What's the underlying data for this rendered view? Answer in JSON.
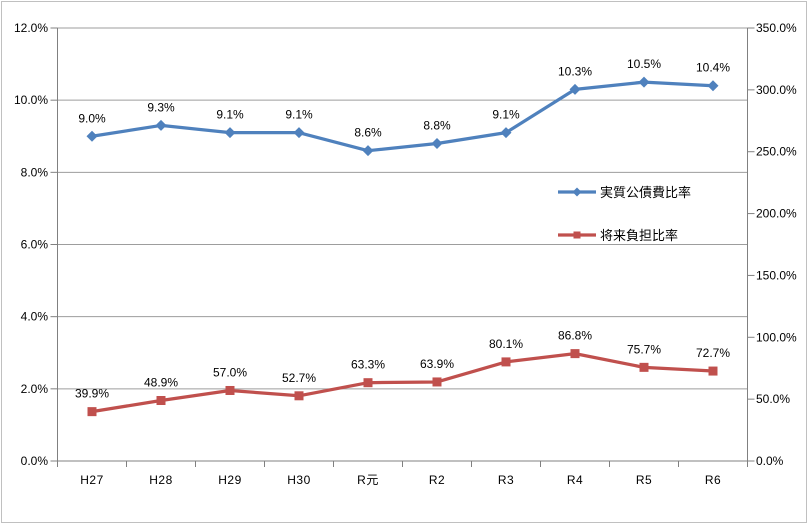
{
  "chart_data": {
    "type": "line",
    "title": "",
    "categories": [
      "H27",
      "H28",
      "H29",
      "H30",
      "R元",
      "R2",
      "R3",
      "R4",
      "R5",
      "R6"
    ],
    "series": [
      {
        "name": "実質公債費比率",
        "axis": "left",
        "color": "#4F81BD",
        "marker": "diamond",
        "values": [
          9.0,
          9.3,
          9.1,
          9.1,
          8.6,
          8.8,
          9.1,
          10.3,
          10.5,
          10.4
        ],
        "labels": [
          "9.0%",
          "9.3%",
          "9.1%",
          "9.1%",
          "8.6%",
          "8.8%",
          "9.1%",
          "10.3%",
          "10.5%",
          "10.4%"
        ]
      },
      {
        "name": "将来負担比率",
        "axis": "right",
        "color": "#C0504D",
        "marker": "square",
        "values": [
          39.9,
          48.9,
          57.0,
          52.7,
          63.3,
          63.9,
          80.1,
          86.8,
          75.7,
          72.7
        ],
        "labels": [
          "39.9%",
          "48.9%",
          "57.0%",
          "52.7%",
          "63.3%",
          "63.9%",
          "80.1%",
          "86.8%",
          "75.7%",
          "72.7%"
        ]
      }
    ],
    "left_axis": {
      "min": 0,
      "max": 12,
      "step": 2,
      "labels": [
        "0.0%",
        "2.0%",
        "4.0%",
        "6.0%",
        "8.0%",
        "10.0%",
        "12.0%"
      ]
    },
    "right_axis": {
      "min": 0,
      "max": 350,
      "step": 50,
      "labels": [
        "0.0%",
        "50.0%",
        "100.0%",
        "150.0%",
        "200.0%",
        "250.0%",
        "300.0%",
        "350.0%"
      ]
    },
    "legend": {
      "position": "middle-right",
      "entries": [
        "実質公債費比率",
        "将来負担比率"
      ]
    },
    "grid": true,
    "colors": {
      "axis": "#808080",
      "gridline": "#9d9d9d",
      "label": "#000000",
      "border": "#c0c0c0",
      "background": "#ffffff",
      "series_blue": "#4F81BD",
      "series_red": "#C0504D"
    }
  }
}
